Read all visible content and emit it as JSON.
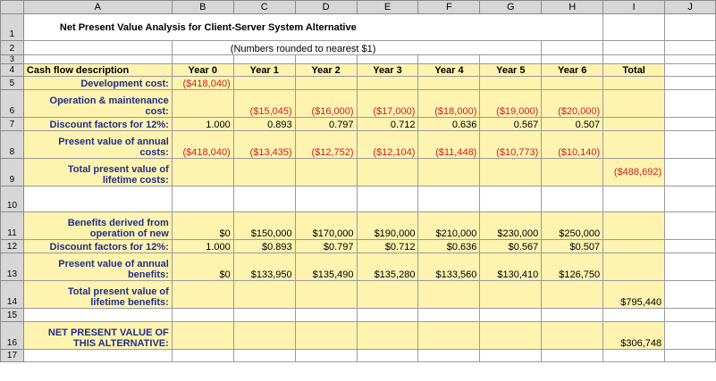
{
  "columns": [
    "A",
    "B",
    "C",
    "D",
    "E",
    "F",
    "G",
    "H",
    "I",
    "J"
  ],
  "rows": [
    "1",
    "2",
    "3",
    "4",
    "5",
    "6",
    "7",
    "8",
    "9",
    "10",
    "11",
    "12",
    "13",
    "14",
    "15",
    "16",
    "17"
  ],
  "title": "Net Present Value  Analysis for Client-Server System Alternative",
  "subtitle": "(Numbers rounded to nearest $1)",
  "header": {
    "label": "Cash flow description",
    "years": [
      "Year 0",
      "Year 1",
      "Year 2",
      "Year 3",
      "Year 4",
      "Year 5",
      "Year 6"
    ],
    "total": "Total"
  },
  "development": {
    "label": "Development cost:",
    "values": [
      "($418,040)",
      "",
      "",
      "",
      "",
      "",
      ""
    ]
  },
  "operation": {
    "label_line1": "Operation & maintenance",
    "label_line2": "cost:",
    "values": [
      "",
      "($15,045)",
      "($16,000)",
      "($17,000)",
      "($18,000)",
      "($19,000)",
      "($20,000)"
    ]
  },
  "discount_costs": {
    "label": "Discount factors for 12%:",
    "values": [
      "1.000",
      "0.893",
      "0.797",
      "0.712",
      "0.636",
      "0.567",
      "0.507"
    ]
  },
  "pv_costs": {
    "label_line1": "Present value of annual",
    "label_line2": "costs:",
    "values": [
      "($418,040)",
      "($13,435)",
      "($12,752)",
      "($12,104)",
      "($11,448)",
      "($10,773)",
      "($10,140)"
    ]
  },
  "total_pv_costs": {
    "label_line1": "Total present value of",
    "label_line2": "lifetime costs:",
    "total": "($488,692)"
  },
  "benefits": {
    "label_line1": "Benefits derived from",
    "label_line2": "operation of new",
    "values": [
      "$0",
      "$150,000",
      "$170,000",
      "$190,000",
      "$210,000",
      "$230,000",
      "$250,000"
    ]
  },
  "discount_benefits": {
    "label": "Discount factors for 12%:",
    "values": [
      "1.000",
      "$0.893",
      "$0.797",
      "$0.712",
      "$0.636",
      "$0.567",
      "$0.507"
    ]
  },
  "pv_benefits": {
    "label_line1": "Present value of annual",
    "label_line2": "benefits:",
    "values": [
      "$0",
      "$133,950",
      "$135,490",
      "$135,280",
      "$133,560",
      "$130,410",
      "$126,750"
    ]
  },
  "total_pv_benefits": {
    "label_line1": "Total present value of",
    "label_line2": "lifetime benefits:",
    "total": "$795,440"
  },
  "npv": {
    "label_line1": "NET PRESENT VALUE OF",
    "label_line2": "THIS ALTERNATIVE:",
    "total": "$306,748"
  },
  "colors": {
    "cell_fill": "#fff3b0",
    "negative": "#cc2020",
    "label_text": "#1f2f8a",
    "header_fill": "#d7d7d7"
  }
}
